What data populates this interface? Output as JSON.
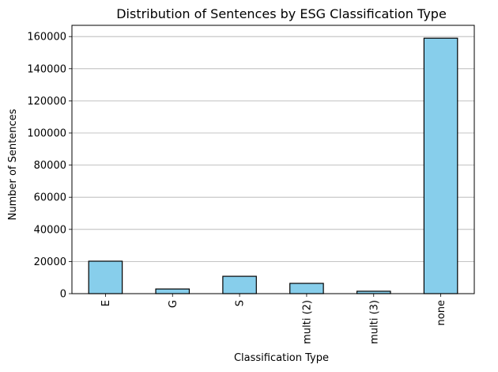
{
  "chart_data": {
    "type": "bar",
    "title": "Distribution of Sentences by ESG Classification Type",
    "xlabel": "Classification Type",
    "ylabel": "Number of Sentences",
    "categories": [
      "E",
      "G",
      "S",
      "multi (2)",
      "multi (3)",
      "none"
    ],
    "values": [
      20200,
      2900,
      10800,
      6400,
      1500,
      159000
    ],
    "ylim": [
      0,
      167000
    ],
    "yticks": [
      0,
      20000,
      40000,
      60000,
      80000,
      100000,
      120000,
      140000,
      160000
    ],
    "grid": "horizontal",
    "bar_color": "#87CEEB",
    "edge_color": "#000000"
  }
}
